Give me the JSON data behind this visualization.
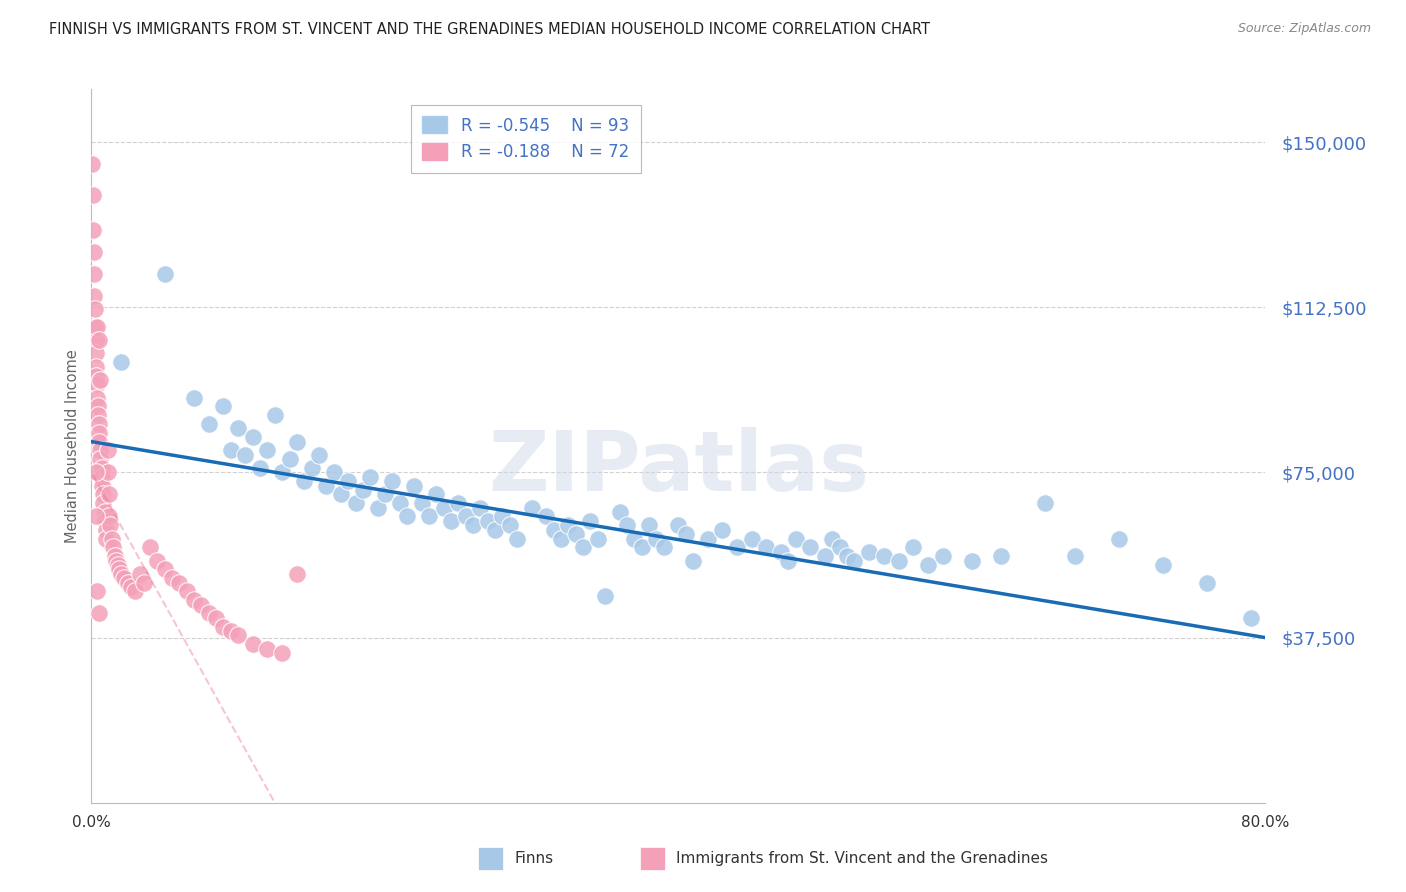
{
  "title": "FINNISH VS IMMIGRANTS FROM ST. VINCENT AND THE GRENADINES MEDIAN HOUSEHOLD INCOME CORRELATION CHART",
  "source": "Source: ZipAtlas.com",
  "ylabel": "Median Household Income",
  "xlim": [
    0.0,
    0.8
  ],
  "ylim": [
    0,
    162000
  ],
  "yticks": [
    37500,
    75000,
    112500,
    150000
  ],
  "ytick_labels": [
    "$37,500",
    "$75,000",
    "$112,500",
    "$150,000"
  ],
  "watermark": "ZIPatlas",
  "legend_r1": "-0.545",
  "legend_n1": "93",
  "legend_r2": "-0.188",
  "legend_n2": "72",
  "color_finns": "#a8c8e8",
  "color_immigrants": "#f4a0b8",
  "color_line_finns": "#1a6bb5",
  "color_line_immigrants": "#e87090",
  "ytick_color": "#4472c4",
  "background_color": "#ffffff",
  "grid_color": "#cccccc",
  "finns_x": [
    0.02,
    0.05,
    0.07,
    0.08,
    0.09,
    0.095,
    0.1,
    0.105,
    0.11,
    0.115,
    0.12,
    0.125,
    0.13,
    0.135,
    0.14,
    0.145,
    0.15,
    0.155,
    0.16,
    0.165,
    0.17,
    0.175,
    0.18,
    0.185,
    0.19,
    0.195,
    0.2,
    0.205,
    0.21,
    0.215,
    0.22,
    0.225,
    0.23,
    0.235,
    0.24,
    0.245,
    0.25,
    0.255,
    0.26,
    0.265,
    0.27,
    0.275,
    0.28,
    0.285,
    0.29,
    0.3,
    0.31,
    0.315,
    0.32,
    0.325,
    0.33,
    0.335,
    0.34,
    0.345,
    0.35,
    0.36,
    0.365,
    0.37,
    0.375,
    0.38,
    0.385,
    0.39,
    0.4,
    0.405,
    0.41,
    0.42,
    0.43,
    0.44,
    0.45,
    0.46,
    0.47,
    0.475,
    0.48,
    0.49,
    0.5,
    0.505,
    0.51,
    0.515,
    0.52,
    0.53,
    0.54,
    0.55,
    0.56,
    0.57,
    0.58,
    0.6,
    0.62,
    0.65,
    0.67,
    0.7,
    0.73,
    0.76,
    0.79
  ],
  "finns_y": [
    100000,
    120000,
    92000,
    86000,
    90000,
    80000,
    85000,
    79000,
    83000,
    76000,
    80000,
    88000,
    75000,
    78000,
    82000,
    73000,
    76000,
    79000,
    72000,
    75000,
    70000,
    73000,
    68000,
    71000,
    74000,
    67000,
    70000,
    73000,
    68000,
    65000,
    72000,
    68000,
    65000,
    70000,
    67000,
    64000,
    68000,
    65000,
    63000,
    67000,
    64000,
    62000,
    65000,
    63000,
    60000,
    67000,
    65000,
    62000,
    60000,
    63000,
    61000,
    58000,
    64000,
    60000,
    47000,
    66000,
    63000,
    60000,
    58000,
    63000,
    60000,
    58000,
    63000,
    61000,
    55000,
    60000,
    62000,
    58000,
    60000,
    58000,
    57000,
    55000,
    60000,
    58000,
    56000,
    60000,
    58000,
    56000,
    55000,
    57000,
    56000,
    55000,
    58000,
    54000,
    56000,
    55000,
    56000,
    68000,
    56000,
    60000,
    54000,
    50000,
    42000
  ],
  "immigrants_x": [
    0.0005,
    0.001,
    0.0012,
    0.0015,
    0.002,
    0.002,
    0.0022,
    0.0025,
    0.003,
    0.003,
    0.003,
    0.0032,
    0.0035,
    0.004,
    0.004,
    0.0042,
    0.0045,
    0.005,
    0.005,
    0.0052,
    0.0055,
    0.006,
    0.006,
    0.0062,
    0.007,
    0.007,
    0.0075,
    0.008,
    0.008,
    0.009,
    0.009,
    0.01,
    0.01,
    0.011,
    0.011,
    0.012,
    0.012,
    0.013,
    0.014,
    0.015,
    0.016,
    0.017,
    0.018,
    0.019,
    0.02,
    0.022,
    0.025,
    0.027,
    0.03,
    0.033,
    0.036,
    0.04,
    0.045,
    0.05,
    0.055,
    0.06,
    0.065,
    0.07,
    0.075,
    0.08,
    0.085,
    0.09,
    0.095,
    0.1,
    0.11,
    0.12,
    0.13,
    0.14,
    0.003,
    0.003,
    0.004,
    0.005
  ],
  "immigrants_y": [
    145000,
    138000,
    130000,
    125000,
    120000,
    115000,
    112000,
    108000,
    105000,
    102000,
    99000,
    97000,
    95000,
    92000,
    108000,
    90000,
    88000,
    86000,
    105000,
    84000,
    82000,
    96000,
    80000,
    78000,
    76000,
    74000,
    72000,
    70000,
    68000,
    66000,
    64000,
    62000,
    60000,
    80000,
    75000,
    70000,
    65000,
    63000,
    60000,
    58000,
    56000,
    55000,
    54000,
    53000,
    52000,
    51000,
    50000,
    49000,
    48000,
    52000,
    50000,
    58000,
    55000,
    53000,
    51000,
    50000,
    48000,
    46000,
    45000,
    43000,
    42000,
    40000,
    39000,
    38000,
    36000,
    35000,
    34000,
    52000,
    75000,
    65000,
    48000,
    43000
  ]
}
